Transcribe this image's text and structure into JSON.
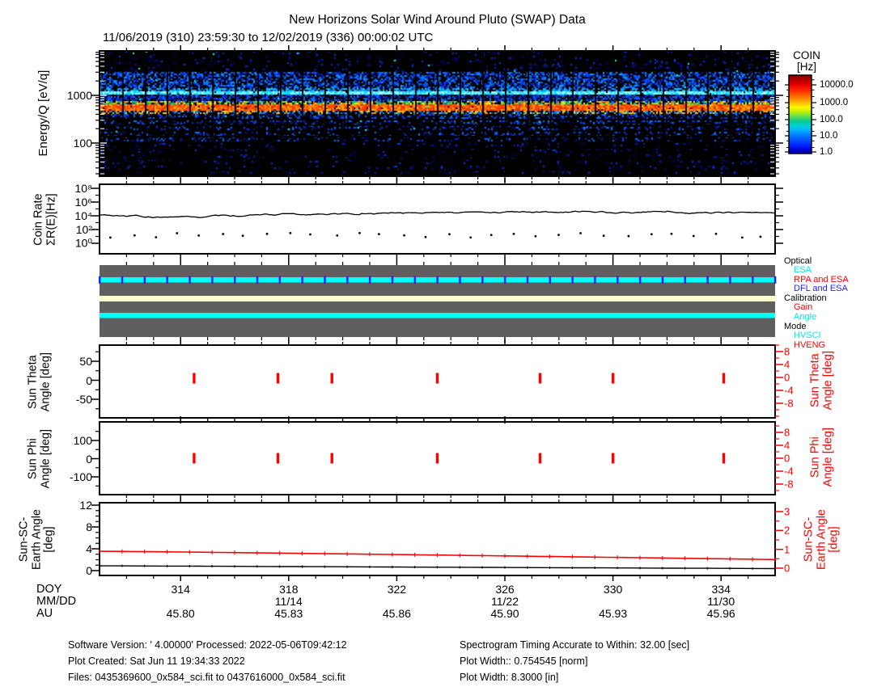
{
  "title": "New Horizons Solar Wind Around Pluto (SWAP) Data",
  "subtitle": "11/06/2019 (310) 23:59:30 to 12/02/2019 (336) 00:00:02 UTC",
  "colorbar": {
    "title": [
      "COIN",
      "[Hz]"
    ],
    "ticks": [
      "10000.0",
      "1000.0",
      "100.0",
      "10.0",
      "1.0"
    ]
  },
  "panels": {
    "spectrogram": {
      "ylabel": "Energy/Q [eV/q]",
      "yticks": [
        "1000",
        "100"
      ]
    },
    "coin_rate": {
      "ylabel": [
        "Coin Rate",
        "ΣR(E)[Hz]"
      ],
      "yticks": [
        "10⁸",
        "10⁶",
        "10⁴",
        "10²",
        "10⁰"
      ]
    },
    "status": {
      "legend": [
        {
          "label": "Optical",
          "color": "#000000",
          "indent": false
        },
        {
          "label": "ESA",
          "color": "#00e8e8",
          "indent": true
        },
        {
          "label": "RPA and ESA",
          "color": "#ff0000",
          "indent": true
        },
        {
          "label": "DFL and ESA",
          "color": "#2222ff",
          "indent": true
        },
        {
          "label": "Calibration",
          "color": "#000000",
          "indent": false
        },
        {
          "label": "Gain",
          "color": "#ff0000",
          "indent": true
        },
        {
          "label": "Angle",
          "color": "#00e8e8",
          "indent": true
        },
        {
          "label": "Mode",
          "color": "#000000",
          "indent": false
        },
        {
          "label": "HVSCI",
          "color": "#00e8e8",
          "indent": true
        },
        {
          "label": "HVENG",
          "color": "#ff0000",
          "indent": true
        }
      ]
    },
    "sun_theta": {
      "ylabel": [
        "Sun Theta",
        "Angle [deg]"
      ],
      "yticks": [
        "50",
        "0",
        "-50"
      ],
      "right_label": [
        "Sun Theta",
        "Angle [deg]"
      ],
      "right_ticks": [
        "8",
        "4",
        "0",
        "-4",
        "-8"
      ]
    },
    "sun_phi": {
      "ylabel": [
        "Sun Phi",
        "Angle [deg]"
      ],
      "yticks": [
        "100",
        "0",
        "-100"
      ],
      "right_label": [
        "Sun Phi",
        "Angle [deg]"
      ],
      "right_ticks": [
        "8",
        "4",
        "0",
        "-4",
        "-8"
      ]
    },
    "sun_sc_earth": {
      "ylabel": [
        "Sun-SC-",
        "Earth Angle",
        "[deg]"
      ],
      "yticks": [
        "12",
        "8",
        "4",
        "0"
      ],
      "right_label": [
        "Sun-SC-",
        "Earth Angle",
        "[deg]"
      ],
      "right_ticks": [
        "3",
        "2",
        "1",
        "0"
      ]
    }
  },
  "xaxis": {
    "row_labels": [
      "DOY",
      "MM/DD",
      "AU"
    ],
    "ticks": [
      {
        "doy": "314",
        "mmdd": "",
        "au": "45.80"
      },
      {
        "doy": "318",
        "mmdd": "11/14",
        "au": "45.83"
      },
      {
        "doy": "322",
        "mmdd": "",
        "au": "45.86"
      },
      {
        "doy": "326",
        "mmdd": "11/22",
        "au": "45.90"
      },
      {
        "doy": "330",
        "mmdd": "",
        "au": "45.93"
      },
      {
        "doy": "334",
        "mmdd": "11/30",
        "au": "45.96"
      }
    ]
  },
  "footer": {
    "left": [
      "Software Version:  ' 4.00000'  Processed: 2022-05-06T09:42:12",
      "Plot Created: Sat Jun 11 19:34:33 2022",
      "Files: 0435369600_0x584_sci.fit to 0437616000_0x584_sci.fit"
    ],
    "right": [
      "Spectrogram Timing Accurate to Within: 32.00 [sec]",
      "Plot Width:: 0.754545 [norm]",
      "Plot Width: 8.3000 [in]"
    ]
  },
  "chart_data": [
    {
      "type": "heatmap",
      "title": "SWAP energy-per-charge spectrogram",
      "ylabel": "Energy/Q [eV/q]",
      "yscale": "log",
      "yrange": [
        20,
        8500
      ],
      "ytick_values": [
        100,
        1000
      ],
      "xrange_doy": [
        311,
        336
      ],
      "colorbar": {
        "label": "COIN [Hz]",
        "scale": "log",
        "tick_values": [
          1,
          10,
          100,
          1000,
          10000
        ],
        "range": [
          0.8,
          40000
        ]
      },
      "features": {
        "solar_wind_proton_band_ev": [
          500,
          800
        ],
        "alpha_particle_line_ev": 1400,
        "diffuse_counts_band_ev": [
          250,
          2500
        ],
        "background": "sparse low-count blue speckle",
        "data_gap_interval_days": 0.83
      }
    },
    {
      "type": "line",
      "title": "Coin Rate",
      "ylabel": "ΣR(E) [Hz]",
      "yscale": "log",
      "yrange": [
        1,
        100000000
      ],
      "ytick_values": [
        1,
        100,
        10000,
        1000000,
        100000000
      ],
      "x_doy": [
        311,
        315,
        319,
        323,
        327,
        331,
        335,
        336
      ],
      "values": [
        13000,
        13500,
        14500,
        15000,
        13500,
        12500,
        13000,
        15000
      ],
      "secondary_dots": {
        "approx_value": 125,
        "count": 30,
        "note": "one low point per ~0.83-day segment"
      }
    },
    {
      "type": "table",
      "title": "Instrument status timeline",
      "rows": [
        {
          "name": "Optical",
          "state": "ESA (cyan) with periodic DFL and ESA (blue) segment boundaries"
        },
        {
          "name": "Calibration",
          "state": "none (cream band)"
        },
        {
          "name": "Mode",
          "state": "HVSCI (cyan) entire interval"
        }
      ]
    },
    {
      "type": "scatter",
      "title": "Sun Theta Angle",
      "ylabel": "Sun Theta Angle [deg]",
      "yrange": [
        -95,
        95
      ],
      "right_yrange": [
        -12,
        10
      ],
      "x_doy": [
        314.5,
        317.6,
        319.6,
        323.5,
        327.3,
        330.0,
        334.1
      ],
      "values": [
        0,
        0,
        0,
        0,
        0,
        0,
        0
      ],
      "marker": "short red vertical dash"
    },
    {
      "type": "scatter",
      "title": "Sun Phi Angle",
      "ylabel": "Sun Phi Angle [deg]",
      "yrange": [
        -200,
        200
      ],
      "right_yrange": [
        -12,
        10
      ],
      "x_doy": [
        314.5,
        317.6,
        319.6,
        323.5,
        327.3,
        330.0,
        334.1
      ],
      "values": [
        0,
        0,
        0,
        0,
        0,
        0,
        0
      ],
      "marker": "short red vertical dash"
    },
    {
      "type": "line",
      "title": "Sun-SC-Earth Angle",
      "yrange": [
        -0.9,
        12.4
      ],
      "right_yrange": [
        -0.2,
        3.6
      ],
      "series": [
        {
          "name": "red (right axis, deg)",
          "x_doy": [
            311,
            336
          ],
          "values": [
            1.02,
            0.82
          ]
        },
        {
          "name": "black (left axis, deg)",
          "x_doy": [
            311,
            336
          ],
          "values": [
            0.9,
            0.5
          ]
        }
      ]
    }
  ]
}
